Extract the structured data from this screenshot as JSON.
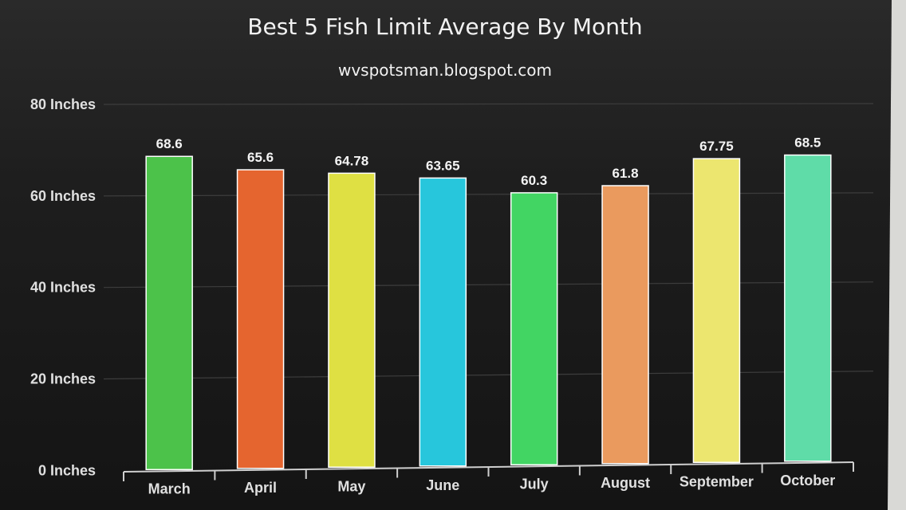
{
  "chart_data": {
    "type": "bar",
    "title": "Best 5 Fish Limit Average By Month",
    "subtitle": "wvspotsman.blogspot.com",
    "categories": [
      "March",
      "April",
      "May",
      "June",
      "July",
      "August",
      "September",
      "October"
    ],
    "values": [
      68.6,
      65.6,
      64.78,
      63.65,
      60.3,
      61.8,
      67.75,
      68.5
    ],
    "data_labels": [
      "68.6",
      "65.6",
      "64.78",
      "63.65",
      "60.3",
      "61.8",
      "67.75",
      "68.5"
    ],
    "bar_colors": [
      "#4cc24a",
      "#e5652f",
      "#dfe043",
      "#27c6dc",
      "#42d563",
      "#ea9a5e",
      "#ece66f",
      "#5fdca8"
    ],
    "y_ticks": [
      {
        "value": 0,
        "label": "0 Inches"
      },
      {
        "value": 20,
        "label": "20 Inches"
      },
      {
        "value": 40,
        "label": "40 Inches"
      },
      {
        "value": 60,
        "label": "60 Inches"
      },
      {
        "value": 80,
        "label": "80 Inches"
      }
    ],
    "ylim": [
      0,
      80
    ],
    "grid": true,
    "legend": "none",
    "xlabel": "",
    "ylabel": ""
  },
  "colors": {
    "background": "#1b1b1b",
    "gridline": "#3d3d3d",
    "axis": "#cfcfcf",
    "bar_border": "#ffffff"
  }
}
